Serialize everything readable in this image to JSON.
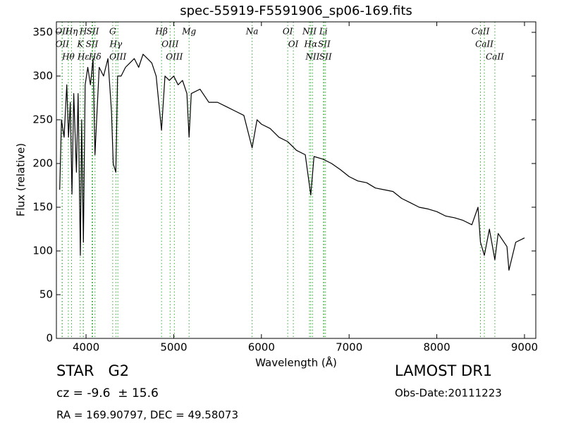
{
  "chart_data": {
    "type": "line",
    "title": "spec-55919-F5591906_sp06-169.fits",
    "x_label": "Wavelength (Å)",
    "y_label": "Flux (relative)",
    "xlim": [
      3662,
      9129
    ],
    "ylim": [
      0,
      362
    ],
    "xticks": [
      4000,
      5000,
      6000,
      7000,
      8000,
      9000
    ],
    "yticks": [
      0,
      50,
      100,
      150,
      200,
      250,
      300,
      350
    ],
    "x": [
      3700,
      3720,
      3750,
      3780,
      3800,
      3820,
      3840,
      3860,
      3890,
      3910,
      3935,
      3950,
      3970,
      3990,
      4020,
      4050,
      4080,
      4102,
      4150,
      4200,
      4250,
      4290,
      4310,
      4340,
      4360,
      4400,
      4450,
      4500,
      4550,
      4600,
      4650,
      4700,
      4750,
      4800,
      4861,
      4900,
      4950,
      5000,
      5050,
      5100,
      5150,
      5175,
      5200,
      5300,
      5400,
      5500,
      5600,
      5700,
      5800,
      5894,
      5950,
      6000,
      6100,
      6200,
      6300,
      6400,
      6500,
      6563,
      6600,
      6700,
      6800,
      6900,
      7000,
      7100,
      7200,
      7300,
      7400,
      7500,
      7600,
      7700,
      7800,
      7900,
      8000,
      8100,
      8200,
      8300,
      8400,
      8470,
      8498,
      8542,
      8600,
      8662,
      8700,
      8800,
      8823,
      8900,
      9000
    ],
    "series": [
      {
        "color": "#000000",
        "values": [
          170,
          250,
          230,
          290,
          230,
          270,
          165,
          280,
          190,
          280,
          95,
          250,
          110,
          290,
          310,
          290,
          320,
          210,
          310,
          300,
          320,
          260,
          200,
          190,
          300,
          300,
          310,
          315,
          320,
          310,
          325,
          320,
          315,
          300,
          238,
          300,
          295,
          300,
          290,
          295,
          280,
          230,
          280,
          285,
          270,
          270,
          265,
          260,
          255,
          218,
          250,
          245,
          240,
          230,
          225,
          215,
          210,
          164,
          208,
          205,
          200,
          193,
          185,
          180,
          178,
          172,
          170,
          168,
          160,
          155,
          150,
          148,
          145,
          140,
          138,
          135,
          130,
          150,
          110,
          95,
          125,
          90,
          120,
          105,
          78,
          110,
          115
        ]
      }
    ],
    "line_color": "#33aa33",
    "lines": [
      {
        "wavelength": 3727,
        "label": "OII"
      },
      {
        "wavelength": 3729,
        "label": "OII"
      },
      {
        "wavelength": 3798,
        "label": "Hθ"
      },
      {
        "wavelength": 3835,
        "label": "Hη"
      },
      {
        "wavelength": 3934,
        "label": "K"
      },
      {
        "wavelength": 3968,
        "label": "H"
      },
      {
        "wavelength": 3970,
        "label": "Hε"
      },
      {
        "wavelength": 4068,
        "label": "SII"
      },
      {
        "wavelength": 4076,
        "label": "SII"
      },
      {
        "wavelength": 4102,
        "label": "Hδ"
      },
      {
        "wavelength": 4304,
        "label": "G"
      },
      {
        "wavelength": 4340,
        "label": "Hγ"
      },
      {
        "wavelength": 4363,
        "label": "OIII"
      },
      {
        "wavelength": 4861,
        "label": "Hβ"
      },
      {
        "wavelength": 4959,
        "label": "OIII"
      },
      {
        "wavelength": 5007,
        "label": "OIII"
      },
      {
        "wavelength": 5175,
        "label": "Mg"
      },
      {
        "wavelength": 5894,
        "label": "Na"
      },
      {
        "wavelength": 6300,
        "label": "OI"
      },
      {
        "wavelength": 6364,
        "label": "OI"
      },
      {
        "wavelength": 6548,
        "label": "NII"
      },
      {
        "wavelength": 6563,
        "label": "Hα"
      },
      {
        "wavelength": 6583,
        "label": "NII"
      },
      {
        "wavelength": 6707,
        "label": "Li"
      },
      {
        "wavelength": 6716,
        "label": "SII"
      },
      {
        "wavelength": 6731,
        "label": "SII"
      },
      {
        "wavelength": 8498,
        "label": "CaII"
      },
      {
        "wavelength": 8542,
        "label": "CaII"
      },
      {
        "wavelength": 8662,
        "label": "CaII"
      }
    ],
    "object_class": "STAR   G2",
    "redshift": "cz = -9.6  ± 15.6",
    "coordinates": "RA = 169.90797, DEC = 49.58073",
    "survey": "LAMOST DR1",
    "obs_date": "Obs-Date:20111223"
  }
}
